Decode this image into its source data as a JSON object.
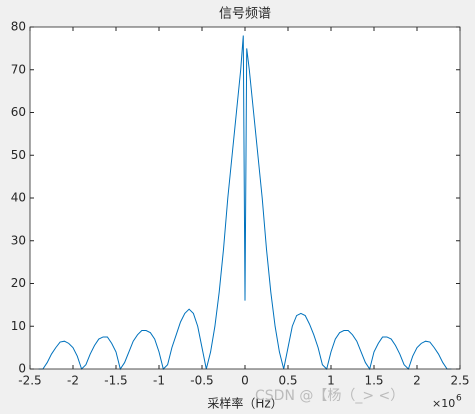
{
  "chart_data": {
    "type": "line",
    "title": "信号频谱",
    "x_label": "采样率（Hz）",
    "x_multiplier": "×10",
    "x_multiplier_exp": "6",
    "watermark": "CSDN @【杨（_> <）",
    "x": [
      -2.4,
      -2.35,
      -2.3,
      -2.25,
      -2.2,
      -2.15,
      -2.1,
      -2.05,
      -2.0,
      -1.95,
      -1.9,
      -1.85,
      -1.8,
      -1.75,
      -1.7,
      -1.65,
      -1.6,
      -1.55,
      -1.5,
      -1.45,
      -1.4,
      -1.35,
      -1.3,
      -1.25,
      -1.2,
      -1.15,
      -1.1,
      -1.05,
      -1.0,
      -0.95,
      -0.9,
      -0.85,
      -0.8,
      -0.75,
      -0.7,
      -0.65,
      -0.6,
      -0.55,
      -0.5,
      -0.45,
      -0.4,
      -0.35,
      -0.3,
      -0.25,
      -0.2,
      -0.15,
      -0.1,
      -0.05,
      -0.02,
      0,
      0.02,
      0.05,
      0.1,
      0.15,
      0.2,
      0.25,
      0.3,
      0.35,
      0.4,
      0.45,
      0.5,
      0.55,
      0.6,
      0.65,
      0.7,
      0.75,
      0.8,
      0.85,
      0.9,
      0.95,
      1.0,
      1.05,
      1.1,
      1.15,
      1.2,
      1.25,
      1.3,
      1.35,
      1.4,
      1.45,
      1.5,
      1.55,
      1.6,
      1.65,
      1.7,
      1.75,
      1.8,
      1.85,
      1.9,
      1.95,
      2.0,
      2.05,
      2.1,
      2.15,
      2.2,
      2.25,
      2.3,
      2.35,
      2.4
    ],
    "series": [
      {
        "color": "#0072bd",
        "values": [
          0,
          0,
          1.5,
          3.5,
          5,
          6.3,
          6.5,
          6,
          5,
          3,
          0,
          1,
          3.5,
          5.5,
          7,
          7.5,
          7.5,
          6,
          4,
          0,
          1.5,
          4,
          6.5,
          8,
          9,
          9,
          8.5,
          7,
          4,
          0,
          1,
          5,
          8,
          11,
          13,
          14,
          13,
          10,
          5,
          0,
          4,
          10,
          18,
          28,
          40,
          50,
          60,
          70,
          78,
          16,
          75,
          70,
          60,
          50,
          40,
          28,
          18,
          10,
          4,
          0,
          5,
          10,
          12.5,
          13,
          12.5,
          10.5,
          8,
          5,
          1,
          0,
          4,
          7,
          8.5,
          9,
          9,
          8,
          6.5,
          4,
          1.5,
          0,
          4,
          6,
          7.5,
          7.5,
          7,
          5.5,
          3.5,
          1,
          0,
          3,
          5,
          6,
          6.5,
          6.3,
          5,
          3.5,
          1.5,
          0,
          0
        ]
      }
    ],
    "xlim": [
      -2.5,
      2.5
    ],
    "xticks": [
      -2.5,
      -2,
      -1.5,
      -1,
      -0.5,
      0,
      0.5,
      1,
      1.5,
      2,
      2.5
    ],
    "ylim": [
      0,
      80
    ],
    "yticks": [
      0,
      10,
      20,
      30,
      40,
      50,
      60,
      70,
      80
    ],
    "grid": false
  }
}
